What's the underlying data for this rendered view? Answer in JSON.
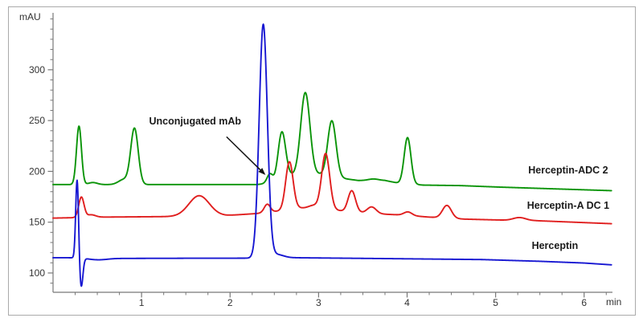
{
  "figure": {
    "background": "#ffffff",
    "border_color": "#aaaaaa"
  },
  "chart_data": {
    "type": "line",
    "title": "",
    "xlabel": "min",
    "ylabel": "mAU",
    "xlim": [
      0,
      6.32
    ],
    "ylim": [
      81,
      356
    ],
    "grid": false,
    "x_ticks": [
      1,
      2,
      3,
      4,
      5,
      6
    ],
    "x_minor_step": 0.25,
    "y_ticks": [
      100,
      150,
      200,
      250,
      300
    ],
    "y_minor_step": 10,
    "y_minor_min": 90,
    "y_minor_max": 350,
    "axis_color": "#777777",
    "tick_label_color": "#333333",
    "annotation": {
      "text": "Unconjugated mAb",
      "text_pos": {
        "t": 1.605,
        "v": 249
      },
      "arrow_from": {
        "t": 1.96,
        "v": 234
      },
      "arrow_to": {
        "t": 2.4,
        "v": 196.5
      },
      "arrow_color": "#111111"
    },
    "series": [
      {
        "name": "Herceptin-ADC 2",
        "color": "#0a9408",
        "label_pos": {
          "t": 5.82,
          "v": 201
        },
        "baseline": [
          [
            0,
            187
          ],
          [
            2.3,
            187
          ],
          [
            2.5,
            189
          ],
          [
            2.65,
            196
          ],
          [
            3.0,
            197
          ],
          [
            3.28,
            193
          ],
          [
            3.45,
            191
          ],
          [
            3.75,
            191
          ],
          [
            3.9,
            188.5
          ],
          [
            4.18,
            186.5
          ],
          [
            4.6,
            186
          ],
          [
            5.05,
            184.5
          ],
          [
            6.31,
            181
          ]
        ],
        "peaks": [
          {
            "t": 0.293,
            "h": 57.5,
            "w": 0.028
          },
          {
            "t": 0.45,
            "h": 2.0,
            "w": 0.05
          },
          {
            "t": 0.8,
            "h": 5.0,
            "w": 0.06
          },
          {
            "t": 0.92,
            "h": 55.0,
            "w": 0.042
          },
          {
            "t": 2.45,
            "h": 9.0,
            "w": 0.032
          },
          {
            "t": 2.585,
            "h": 46.0,
            "w": 0.042
          },
          {
            "t": 2.85,
            "h": 81.0,
            "w": 0.052
          },
          {
            "t": 3.15,
            "h": 55.0,
            "w": 0.047
          },
          {
            "t": 3.62,
            "h": 1.5,
            "w": 0.06
          },
          {
            "t": 4.005,
            "h": 45.5,
            "w": 0.038
          }
        ]
      },
      {
        "name": "Herceptin-A DC 1",
        "color": "#e01e1e",
        "label_pos": {
          "t": 5.82,
          "v": 166
        },
        "baseline": [
          [
            0,
            154
          ],
          [
            0.55,
            155
          ],
          [
            1.3,
            155.5
          ],
          [
            1.95,
            156.5
          ],
          [
            2.3,
            158.5
          ],
          [
            2.6,
            161.5
          ],
          [
            2.78,
            164
          ],
          [
            3.05,
            164
          ],
          [
            3.3,
            160.5
          ],
          [
            3.6,
            158.5
          ],
          [
            3.95,
            157
          ],
          [
            4.25,
            155
          ],
          [
            4.65,
            153
          ],
          [
            5.1,
            152
          ],
          [
            5.45,
            151.5
          ],
          [
            6.31,
            148.5
          ]
        ],
        "peaks": [
          {
            "t": 0.32,
            "h": 20.0,
            "w": 0.03
          },
          {
            "t": 0.43,
            "h": 2.5,
            "w": 0.05
          },
          {
            "t": 1.65,
            "h": 20.0,
            "w": 0.115
          },
          {
            "t": 2.42,
            "h": 8.0,
            "w": 0.034
          },
          {
            "t": 2.67,
            "h": 47.0,
            "w": 0.042
          },
          {
            "t": 2.94,
            "h": 2.5,
            "w": 0.05
          },
          {
            "t": 3.08,
            "h": 54.0,
            "w": 0.045
          },
          {
            "t": 3.375,
            "h": 21.0,
            "w": 0.042
          },
          {
            "t": 3.6,
            "h": 6.5,
            "w": 0.05
          },
          {
            "t": 4.01,
            "h": 3.5,
            "w": 0.045
          },
          {
            "t": 4.45,
            "h": 12.5,
            "w": 0.05
          },
          {
            "t": 5.27,
            "h": 2.8,
            "w": 0.07
          }
        ]
      },
      {
        "name": "Herceptin",
        "color": "#1717d2",
        "label_pos": {
          "t": 5.67,
          "v": 127
        },
        "baseline": [
          [
            0,
            115
          ],
          [
            0.22,
            115
          ],
          [
            0.6,
            114.3
          ],
          [
            1.5,
            114.5
          ],
          [
            2.3,
            114.6
          ],
          [
            2.75,
            115
          ],
          [
            3.6,
            114.3
          ],
          [
            4.85,
            113.2
          ],
          [
            5.5,
            111.5
          ],
          [
            6.0,
            109.8
          ],
          [
            6.31,
            108
          ]
        ],
        "peaks": [
          {
            "t": 0.272,
            "h": 78.0,
            "w": 0.016
          },
          {
            "t": 0.318,
            "h": -28.5,
            "w": 0.019
          },
          {
            "t": 0.5,
            "h": -1.5,
            "w": 0.1
          },
          {
            "t": 2.375,
            "h": 229.5,
            "w": 0.046
          },
          {
            "t": 2.52,
            "h": 3.5,
            "w": 0.08
          }
        ]
      }
    ]
  }
}
